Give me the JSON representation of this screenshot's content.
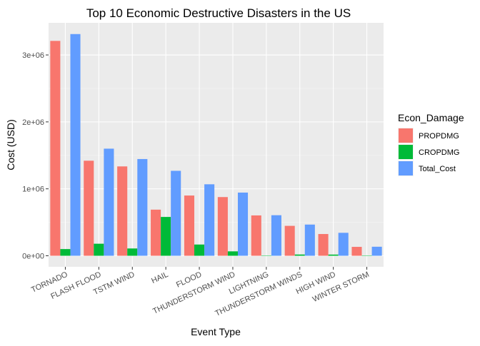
{
  "chart_data": {
    "type": "bar",
    "title": "Top 10 Economic Destructive Disasters in the US",
    "xlabel": "Event Type",
    "ylabel": "Cost (USD)",
    "categories": [
      "TORNADO",
      "FLASH FLOOD",
      "TSTM WIND",
      "HAIL",
      "FLOOD",
      "THUNDERSTORM WIND",
      "LIGHTNING",
      "THUNDERSTORM WINDS",
      "HIGH WIND",
      "WINTER STORM"
    ],
    "series": [
      {
        "name": "PROPDMG",
        "color": "#F8766D",
        "values": [
          3210000,
          1420000,
          1335000,
          689000,
          900000,
          877000,
          603000,
          447000,
          325000,
          133000
        ]
      },
      {
        "name": "CROPDMG",
        "color": "#00BA38",
        "values": [
          100000,
          180000,
          109000,
          580000,
          168000,
          66000,
          3000,
          19000,
          18000,
          2000
        ]
      },
      {
        "name": "Total_Cost",
        "color": "#619CFF",
        "values": [
          3312000,
          1600000,
          1445000,
          1269000,
          1068000,
          944000,
          606000,
          466000,
          343000,
          135000
        ]
      }
    ],
    "y_ticks": [
      0,
      1000000,
      2000000,
      3000000
    ],
    "y_tick_labels": [
      "0e+00",
      "1e+06",
      "2e+06",
      "3e+06"
    ],
    "ylim": [
      -165000,
      3480000
    ],
    "grid": true,
    "legend": {
      "title": "Econ_Damage",
      "placement": "right"
    }
  }
}
